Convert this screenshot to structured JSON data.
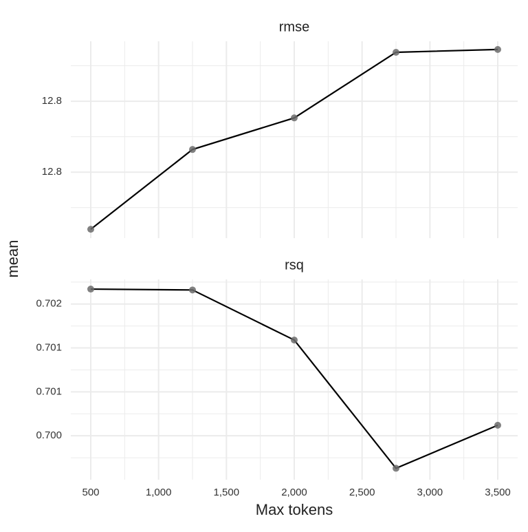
{
  "shared_axes": {
    "xlabel": "Max tokens",
    "ylabel": "mean"
  },
  "chart_data": [
    {
      "type": "line",
      "title": "rmse",
      "x": [
        500,
        1250,
        2000,
        2750,
        3500
      ],
      "series": [
        {
          "color": "#000000",
          "point_color": "#6b6b6b",
          "values": [
            12.7639,
            12.7864,
            12.7953,
            12.8138,
            12.8146
          ]
        }
      ],
      "xlim": [
        353,
        3647
      ],
      "ylim": [
        12.7614,
        12.8169
      ],
      "yticks": [
        {
          "value": 12.78,
          "label": "12.8"
        },
        {
          "value": 12.8,
          "label": "12.8"
        }
      ],
      "grid": true
    },
    {
      "type": "line",
      "title": "rsq",
      "x": [
        500,
        1250,
        2000,
        2750,
        3500
      ],
      "series": [
        {
          "color": "#000000",
          "point_color": "#6b6b6b",
          "values": [
            0.70217,
            0.70216,
            0.70159,
            0.70013,
            0.70062
          ]
        }
      ],
      "xlim": [
        353,
        3647
      ],
      "ylim": [
        0.7,
        0.70228
      ],
      "yticks": [
        {
          "value": 0.7005,
          "label": "0.700"
        },
        0.701,
        {
          "value": 0.7015,
          "label": "0.701"
        },
        0.702
      ],
      "xticks": [
        500,
        {
          "value": 1000,
          "label": "1,000"
        },
        {
          "value": 1500,
          "label": "1,500"
        },
        {
          "value": 2000,
          "label": "2,000"
        },
        {
          "value": 2500,
          "label": "2,500"
        },
        {
          "value": 3000,
          "label": "3,000"
        },
        {
          "value": 3500,
          "label": "3,500"
        }
      ],
      "grid": true
    }
  ]
}
